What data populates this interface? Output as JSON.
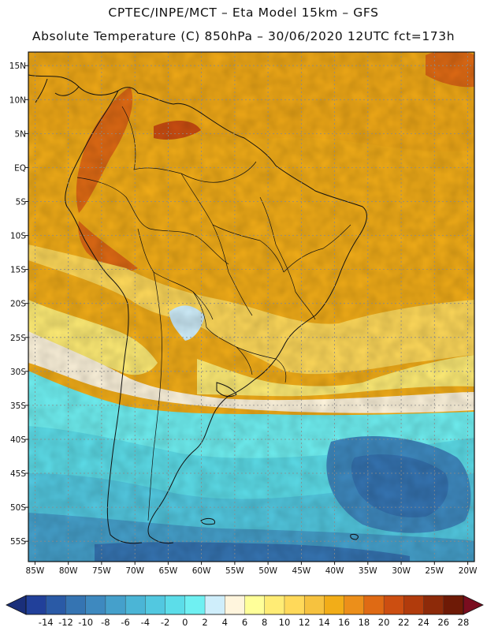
{
  "header": {
    "line1": "CPTEC/INPE/MCT –  Eta Model 15km – GFS",
    "line2": "Absolute Temperature (C) 850hPa – 30/06/2020 12UTC fct=173h"
  },
  "map": {
    "lon_range": [
      -86,
      -19
    ],
    "lat_range": [
      -58,
      17
    ],
    "lon_ticks": [
      "85W",
      "80W",
      "75W",
      "70W",
      "65W",
      "60W",
      "55W",
      "50W",
      "45W",
      "40W",
      "35W",
      "30W",
      "25W",
      "20W"
    ],
    "lon_tick_values": [
      -85,
      -80,
      -75,
      -70,
      -65,
      -60,
      -55,
      -50,
      -45,
      -40,
      -35,
      -30,
      -25,
      -20
    ],
    "lat_ticks": [
      "15N",
      "10N",
      "5N",
      "EQ",
      "5S",
      "10S",
      "15S",
      "20S",
      "25S",
      "30S",
      "35S",
      "40S",
      "45S",
      "50S",
      "55S"
    ],
    "lat_tick_values": [
      15,
      10,
      5,
      0,
      -5,
      -10,
      -15,
      -20,
      -25,
      -30,
      -35,
      -40,
      -45,
      -50,
      -55
    ],
    "gridlines": "dotted",
    "field": "temperature_850hPa"
  },
  "colorbar": {
    "labels": [
      "-14",
      "-12",
      "-10",
      "-8",
      "-6",
      "-4",
      "-2",
      "0",
      "2",
      "4",
      "6",
      "8",
      "10",
      "12",
      "14",
      "16",
      "18",
      "20",
      "22",
      "24",
      "26",
      "28"
    ],
    "colors": [
      "#21409a",
      "#2a5aa6",
      "#3574b2",
      "#3e89bf",
      "#45a0cb",
      "#4bb5d6",
      "#52c8e0",
      "#5cdde9",
      "#6ff0f2",
      "#cfeefb",
      "#fff5dd",
      "#ffff99",
      "#ffec75",
      "#ffd95a",
      "#f6c23f",
      "#f2ad18",
      "#ec8f1a",
      "#df6a14",
      "#cc4e11",
      "#b13b0c",
      "#8d2a09",
      "#6e1a06"
    ],
    "min_color": "#1a2f7a",
    "max_color": "#7a0d1f"
  }
}
